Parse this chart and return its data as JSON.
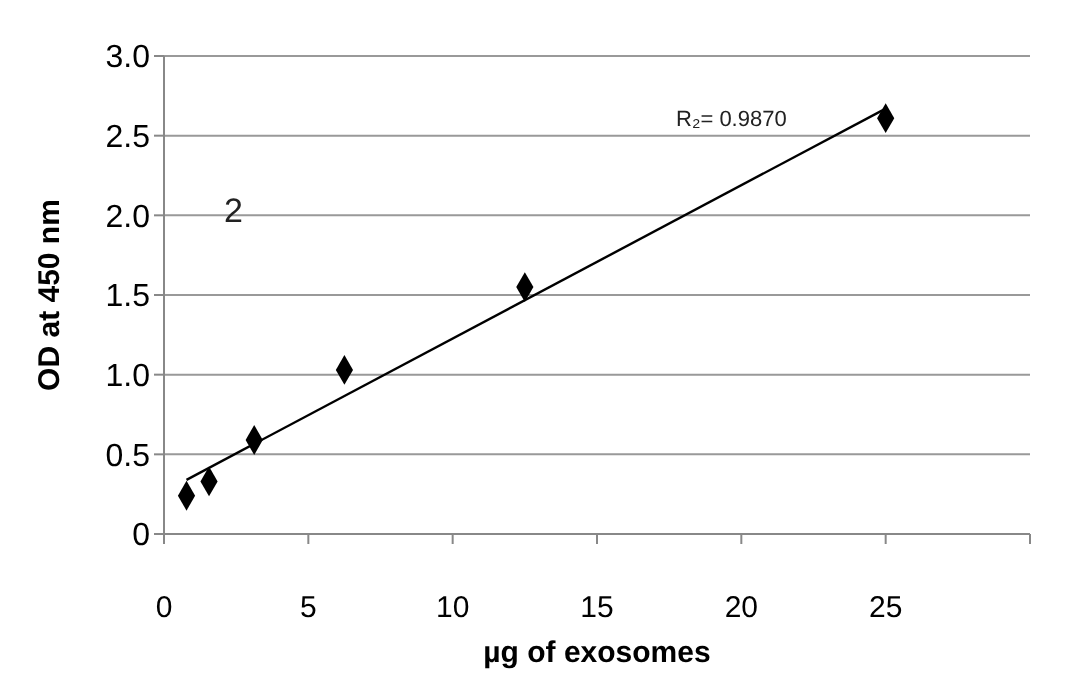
{
  "chart_data": {
    "type": "scatter",
    "xlabel": "µg of exosomes",
    "ylabel": "OD at 450 nm",
    "xlim": [
      0,
      30
    ],
    "xticks": [
      0,
      5,
      10,
      15,
      20,
      25,
      {
        "value": 30,
        "label": null
      }
    ],
    "ylim": [
      0,
      3
    ],
    "yticks": [
      0,
      {
        "value": 0.5,
        "label": "0.5"
      },
      {
        "value": 1,
        "label": "1.0"
      },
      {
        "value": 1.5,
        "label": "1.5"
      },
      {
        "value": 2,
        "label": "2.0"
      },
      {
        "value": 2.5,
        "label": "2.5"
      },
      {
        "value": 3,
        "label": "3.0"
      }
    ],
    "grid": "y",
    "legend": false,
    "series": [
      {
        "marker": "diamond",
        "color": "#000000",
        "x": [
          0.78,
          1.56,
          3.125,
          6.25,
          12.5,
          25
        ],
        "values": [
          0.24,
          0.33,
          0.59,
          1.03,
          1.55,
          2.61
        ]
      },
      {
        "type": "line",
        "color": "#000000",
        "x": [
          0.78,
          25
        ],
        "values": [
          0.34,
          2.67
        ]
      }
    ],
    "annotations": [
      "R₂= 0.9870",
      "2"
    ]
  }
}
